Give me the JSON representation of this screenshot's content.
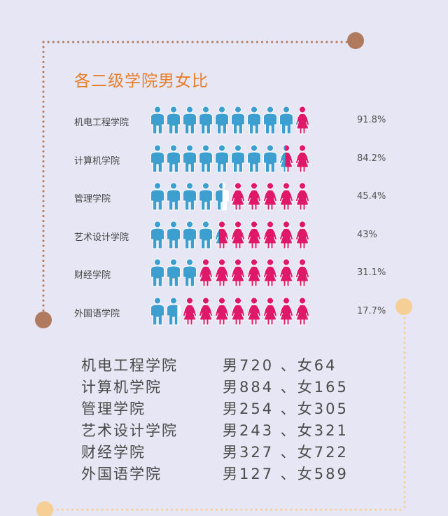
{
  "title": "各二级学院男女比",
  "colors": {
    "background": "#e6e6f4",
    "male": "#3d9fd0",
    "female": "#e0186a",
    "title": "#e87d2a",
    "dot_border": "#b07a5e",
    "dot_accent": "#f6cf96"
  },
  "chart_data": {
    "type": "pictograph",
    "title": "各二级学院男女比",
    "icons_per_row": 10,
    "categories": [
      "机电工程学院",
      "计算机学院",
      "管理学院",
      "艺术设计学院",
      "财经学院",
      "外国语学院"
    ],
    "series": [
      {
        "name": "男",
        "values": [
          91.8,
          84.2,
          45.4,
          43,
          31.1,
          17.7
        ]
      }
    ],
    "value_labels": [
      "91.8%",
      "84.2%",
      "45.4%",
      "43%",
      "31.1%",
      "17.7%"
    ]
  },
  "stats": [
    {
      "college": "机电工程学院",
      "counts": "男720 、女64"
    },
    {
      "college": "计算机学院",
      "counts": "男884 、女165"
    },
    {
      "college": "管理学院",
      "counts": "男254 、女305"
    },
    {
      "college": "艺术设计学院",
      "counts": "男243 、女321"
    },
    {
      "college": "财经学院",
      "counts": "男327 、女722"
    },
    {
      "college": "外国语学院",
      "counts": "男127 、女589"
    }
  ]
}
